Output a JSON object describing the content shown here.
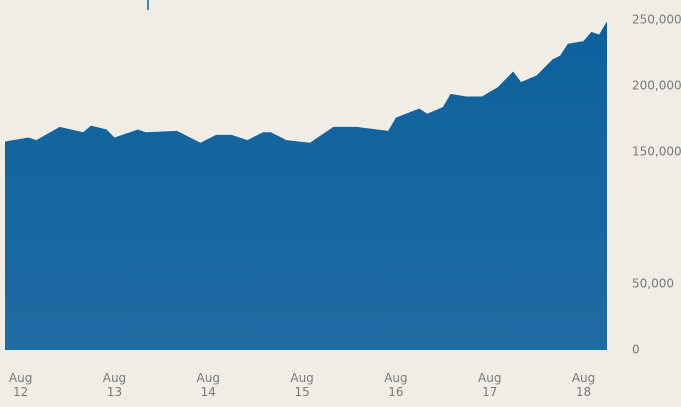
{
  "chart_data": {
    "type": "area",
    "x": [
      "2012-06",
      "2012-09",
      "2012-10",
      "2013-01",
      "2013-04",
      "2013-05",
      "2013-07",
      "2013-08",
      "2013-11",
      "2013-12",
      "2014-04",
      "2014-07",
      "2014-09",
      "2014-11",
      "2014-12",
      "2015-01",
      "2015-03",
      "2015-04",
      "2015-06",
      "2015-09",
      "2015-12",
      "2016-03",
      "2016-07",
      "2016-08",
      "2016-11",
      "2016-12",
      "2017-02",
      "2017-03",
      "2017-05",
      "2017-07",
      "2017-09",
      "2017-11",
      "2017-12",
      "2018-02",
      "2018-04",
      "2018-05",
      "2018-06",
      "2018-08",
      "2018-09",
      "2018-10",
      "2018-11"
    ],
    "values": [
      158000,
      161000,
      159000,
      169000,
      165000,
      170000,
      167000,
      161000,
      167000,
      165000,
      166000,
      157000,
      163000,
      163000,
      161000,
      159000,
      165000,
      165000,
      159000,
      157000,
      169000,
      169000,
      166000,
      176000,
      183000,
      179000,
      184000,
      194000,
      192000,
      192000,
      199000,
      211000,
      203000,
      208000,
      220000,
      223000,
      232000,
      234000,
      241000,
      239000,
      249000
    ],
    "color": "#0d609c",
    "xlim": [
      "2012-06",
      "2018-11"
    ],
    "xticks": [
      {
        "value": "2012-08",
        "label": "Aug 12"
      },
      {
        "value": "2013-08",
        "label": "Aug 13"
      },
      {
        "value": "2014-08",
        "label": "Aug 14"
      },
      {
        "value": "2015-08",
        "label": "Aug 15"
      },
      {
        "value": "2016-08",
        "label": "Aug 16"
      },
      {
        "value": "2017-08",
        "label": "Aug 17"
      },
      {
        "value": "2018-08",
        "label": "Aug 18"
      }
    ],
    "ylim": [
      0,
      250000
    ],
    "yticks": [
      {
        "value": 0,
        "label": "0"
      },
      {
        "value": 50000,
        "label": "50,000"
      },
      {
        "value": 150000,
        "label": "150,000"
      },
      {
        "value": 200000,
        "label": "200,000"
      },
      {
        "value": 250000,
        "label": "250,000"
      }
    ],
    "y_axis_side": "right"
  }
}
